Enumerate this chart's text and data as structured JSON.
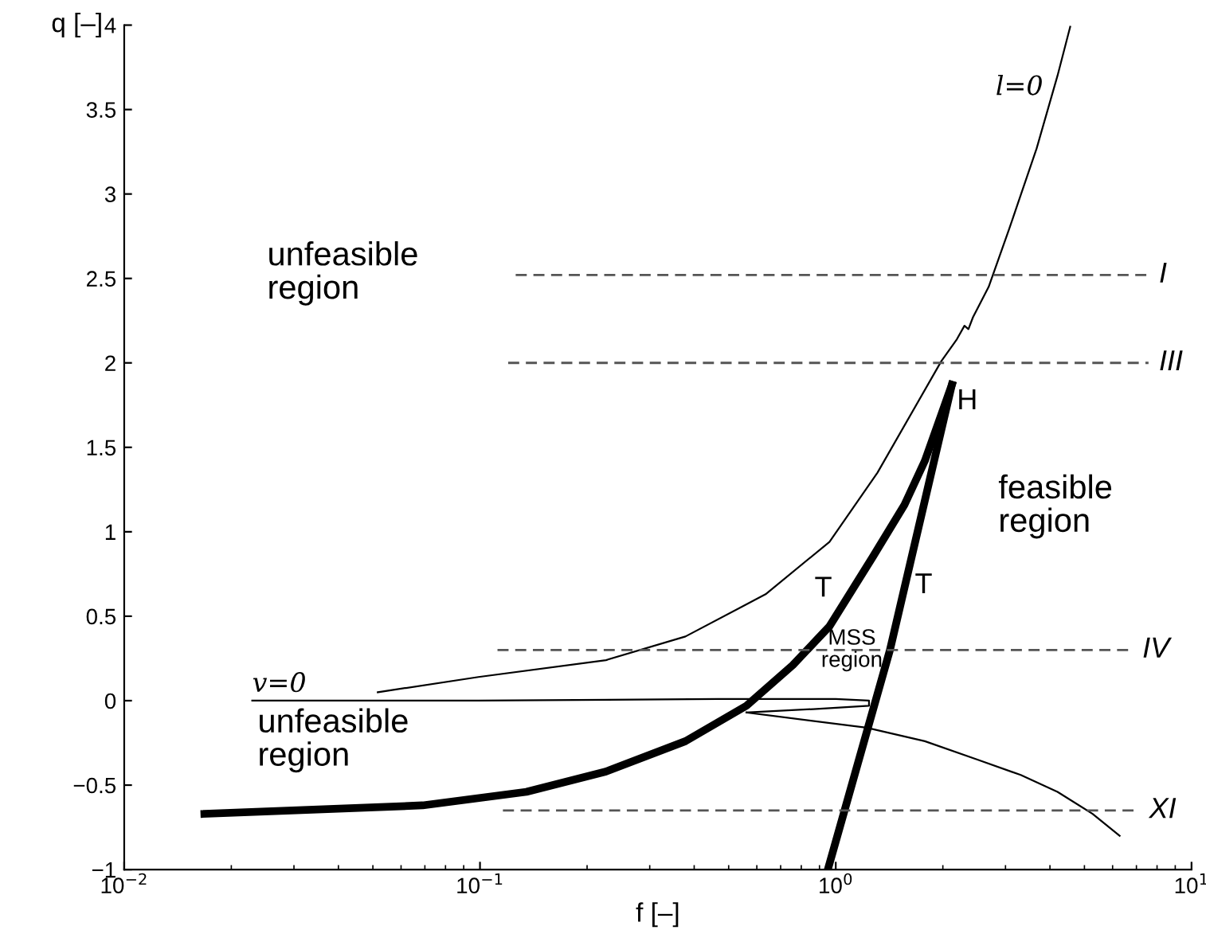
{
  "chart_data": {
    "type": "line",
    "xlabel": "f [–]",
    "ylabel": "q [–]",
    "log": "x",
    "grid": false,
    "legend": false,
    "marker": "none",
    "xlim": [
      0.01,
      10
    ],
    "xticks": [
      {
        "value": 0.01,
        "label": "10$^{−2}$"
      },
      {
        "value": 0.1,
        "label": "10$^{−1}$"
      },
      {
        "value": 1,
        "label": "10$^{0}$"
      },
      {
        "value": 10,
        "label": "10$^{1}$"
      }
    ],
    "ylim": [
      -1,
      4
    ],
    "yticks": [
      {
        "value": -1,
        "label": "−1"
      },
      {
        "value": -0.5,
        "label": "−0.5"
      },
      0,
      0.5,
      1,
      1.5,
      2,
      2.5,
      3,
      3.5,
      4
    ],
    "series": [
      {
        "color": "#000000",
        "line_style": "solid",
        "x": [
          0.0516,
          0.099,
          0.226,
          0.378,
          0.635,
          0.96,
          1.31,
          1.98,
          2.19,
          2.3,
          2.36,
          2.43,
          2.69,
          3.08,
          3.67,
          4.2,
          4.56
        ],
        "values": [
          0.05,
          0.14,
          0.24,
          0.38,
          0.63,
          0.94,
          1.35,
          2.01,
          2.14,
          2.22,
          2.2,
          2.27,
          2.45,
          2.8,
          3.27,
          3.7,
          3.99
        ]
      },
      {
        "color": "#000000",
        "line_style": "solid",
        "x": [
          0.0229,
          0.099,
          0.466,
          1.0,
          1.24,
          1.24,
          0.865,
          0.561
        ],
        "values": [
          0.0,
          0.0,
          0.01,
          0.01,
          0.0,
          -0.03,
          -0.05,
          -0.07
        ]
      },
      {
        "color": "#000000",
        "line_style": "solid",
        "x": [
          0.561,
          1.22,
          1.78,
          2.51,
          3.31,
          4.2,
          5.27,
          6.28
        ],
        "values": [
          -0.07,
          -0.16,
          -0.24,
          -0.35,
          -0.44,
          -0.54,
          -0.67,
          -0.8
        ]
      },
      {
        "color": "#000000",
        "line_style": "solid",
        "x": [
          0.0168,
          0.069,
          0.135,
          0.226,
          0.378,
          0.561,
          0.757,
          0.96,
          1.27,
          1.56,
          1.78,
          2.12
        ],
        "values": [
          -0.67,
          -0.62,
          -0.54,
          -0.42,
          -0.24,
          -0.03,
          0.21,
          0.44,
          0.85,
          1.16,
          1.42,
          1.87
        ]
      },
      {
        "color": "#000000",
        "line_style": "solid",
        "x": [
          0.95,
          1.42,
          2.12
        ],
        "values": [
          -1,
          0.3,
          1.87
        ]
      },
      {
        "name": "I",
        "color": "#555555",
        "line_style": "dashed",
        "x": [
          0.126,
          7.57
        ],
        "values": [
          2.52,
          2.52
        ]
      },
      {
        "name": "III",
        "color": "#555555",
        "line_style": "dashed",
        "x": [
          0.12,
          7.57
        ],
        "values": [
          2.0,
          2.0
        ]
      },
      {
        "name": "IV",
        "color": "#555555",
        "line_style": "dashed",
        "x": [
          0.112,
          6.8
        ],
        "values": [
          0.3,
          0.3
        ]
      },
      {
        "name": "XI",
        "color": "#555555",
        "line_style": "dashed",
        "x": [
          0.116,
          7.1
        ],
        "values": [
          -0.65,
          -0.65
        ]
      }
    ],
    "annotations": [
      "unfeasible\nregion",
      "unfeasible\nregion",
      "feasible\nregion",
      "T",
      "T",
      {
        "text": "H",
        "x": 2.19,
        "y": 1.77
      },
      {
        "text": "MSS\nregion",
        "x": 1.11,
        "y": 0.3
      },
      "l=0",
      {
        "text": "v=0",
        "x": 0.0229,
        "y": 0.02
      }
    ]
  }
}
